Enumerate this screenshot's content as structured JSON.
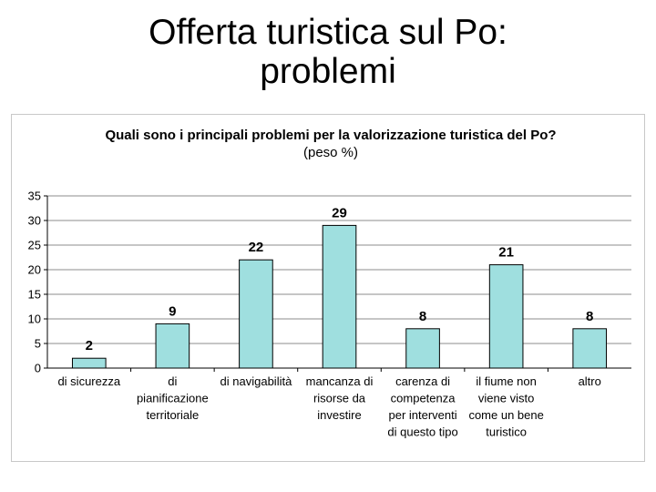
{
  "slide": {
    "title_line1": "Offerta turistica sul Po:",
    "title_line2": "problemi"
  },
  "chart_data": {
    "type": "bar",
    "title": "Quali sono i principali problemi per la valorizzazione turistica del Po?",
    "subtitle": "(peso %)",
    "categories": [
      [
        "di sicurezza"
      ],
      [
        "di",
        "pianificazione",
        "territoriale"
      ],
      [
        "di navigabilità"
      ],
      [
        "mancanza di",
        "risorse da",
        "investire"
      ],
      [
        "carenza di",
        "competenza",
        "per interventi",
        "di questo tipo"
      ],
      [
        "il fiume non",
        "viene visto",
        "come un bene",
        "turistico"
      ],
      [
        "altro"
      ]
    ],
    "values": [
      2,
      9,
      22,
      29,
      8,
      21,
      8
    ],
    "ylim": [
      0,
      35
    ],
    "yticks": [
      0,
      5,
      10,
      15,
      20,
      25,
      30,
      35
    ],
    "grid": true,
    "legend": "none",
    "bar_color": "#9fdfdf",
    "bar_edge_color": "#000000"
  }
}
